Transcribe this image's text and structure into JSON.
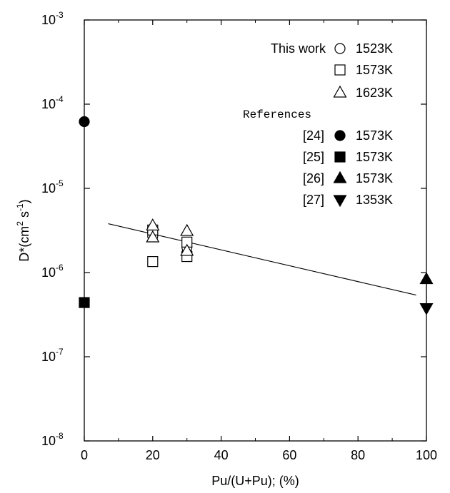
{
  "chart_data": {
    "type": "scatter",
    "title": "",
    "xlabel": "Pu/(U+Pu); (%)",
    "ylabel": "D*(cm² s⁻¹)",
    "ylabel_parts": {
      "base": "D*(cm",
      "exp1": "2",
      "mid": " s",
      "exp2": "-1",
      "end": ")"
    },
    "xlim": [
      0,
      100
    ],
    "ylim": [
      1e-08,
      0.001
    ],
    "yscale": "log",
    "xticks": [
      0,
      20,
      40,
      60,
      80,
      100
    ],
    "yticks": [
      {
        "value": 1e-08,
        "base": "10",
        "exp": "-8"
      },
      {
        "value": 1e-07,
        "base": "10",
        "exp": "-7"
      },
      {
        "value": 1e-06,
        "base": "10",
        "exp": "-6"
      },
      {
        "value": 1e-05,
        "base": "10",
        "exp": "-5"
      },
      {
        "value": 0.0001,
        "base": "10",
        "exp": "-4"
      },
      {
        "value": 0.001,
        "base": "10",
        "exp": "-3"
      }
    ],
    "grid": false,
    "legend_placement": "top-right",
    "legend_groups": [
      {
        "label": "This work",
        "style": "sans"
      },
      {
        "label": "References",
        "style": "mono"
      }
    ],
    "series": [
      {
        "legend_label": "This work",
        "temperature": "1523K",
        "marker": "circle-open",
        "points": [
          [
            20,
            3e-06
          ],
          [
            20,
            2.7e-06
          ],
          [
            30,
            1.7e-06
          ],
          [
            30,
            2e-06
          ]
        ]
      },
      {
        "legend_label": "",
        "temperature": "1573K",
        "marker": "square-open",
        "points": [
          [
            20,
            3.2e-06
          ],
          [
            20,
            1.35e-06
          ],
          [
            30,
            2.3e-06
          ],
          [
            30,
            1.55e-06
          ]
        ]
      },
      {
        "legend_label": "",
        "temperature": "1623K",
        "marker": "triangle-up-open",
        "points": [
          [
            20,
            3.6e-06
          ],
          [
            20,
            2.6e-06
          ],
          [
            30,
            3.1e-06
          ],
          [
            30,
            1.8e-06
          ]
        ]
      },
      {
        "legend_label": "[24]",
        "temperature": "1573K",
        "marker": "circle-filled",
        "points": [
          [
            0,
            6.2e-05
          ]
        ]
      },
      {
        "legend_label": "[25]",
        "temperature": "1573K",
        "marker": "square-filled",
        "points": [
          [
            0,
            4.4e-07
          ]
        ]
      },
      {
        "legend_label": "[26]",
        "temperature": "1573K",
        "marker": "triangle-up-filled",
        "points": [
          [
            100,
            8.3e-07
          ]
        ]
      },
      {
        "legend_label": "[27]",
        "temperature": "1353K",
        "marker": "triangle-down-filled",
        "points": [
          [
            100,
            3.8e-07
          ]
        ]
      }
    ],
    "fit_line": {
      "points": [
        [
          7,
          3.8e-06
        ],
        [
          97,
          5.4e-07
        ]
      ]
    },
    "vertical_link": {
      "x": 100,
      "y_range": [
        3.8e-07,
        8.3e-07
      ]
    }
  }
}
